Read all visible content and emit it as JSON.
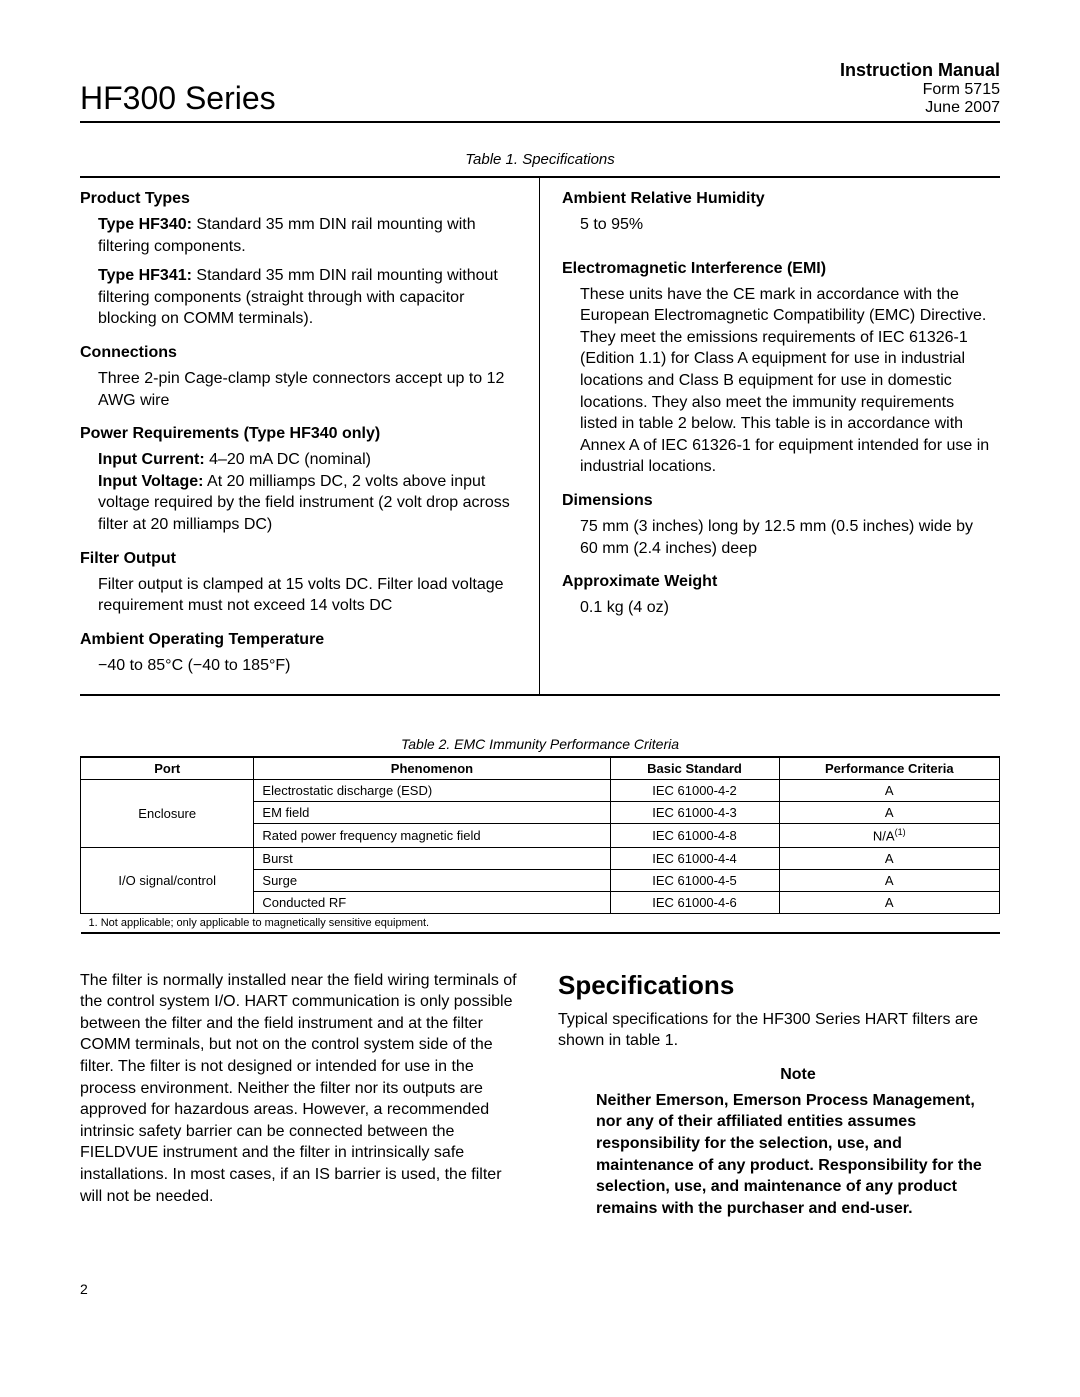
{
  "header": {
    "series": "HF300 Series",
    "manual_title": "Instruction Manual",
    "form_no": "Form 5715",
    "doc_date": "June 2007"
  },
  "table1": {
    "caption": "Table 1. Specifications",
    "left": {
      "product_types": {
        "heading": "Product Types",
        "hf340_label": "Type HF340:",
        "hf340_text": " Standard 35 mm DIN rail mounting with filtering components.",
        "hf341_label": "Type HF341:",
        "hf341_text": " Standard 35 mm DIN rail mounting without filtering components (straight through with capacitor blocking on COMM terminals)."
      },
      "connections": {
        "heading": "Connections",
        "text": "Three 2-pin Cage-clamp style connectors accept up to 12 AWG wire"
      },
      "power": {
        "heading": "Power Requirements (Type HF340 only)",
        "ic_label": "Input Current:",
        "ic_text": " 4–20 mA DC (nominal)",
        "iv_label": "Input Voltage:",
        "iv_text": " At 20 milliamps DC, 2 volts above input voltage required by the field instrument (2 volt drop across filter at 20 milliamps DC)"
      },
      "filter_output": {
        "heading": "Filter Output",
        "text": "Filter output is clamped at 15 volts DC. Filter load voltage requirement must not exceed 14 volts DC"
      },
      "ambient_temp": {
        "heading": "Ambient Operating Temperature",
        "text": "−40 to 85°C (−40 to 185°F)"
      }
    },
    "right": {
      "humidity": {
        "heading": "Ambient Relative Humidity",
        "text": "5 to 95%"
      },
      "emi": {
        "heading": "Electromagnetic Interference (EMI)",
        "text": "These units have the CE mark in accordance with the European Electromagnetic Compatibility (EMC) Directive. They meet the emissions requirements of IEC 61326-1 (Edition 1.1) for Class A equipment for use in industrial locations and Class B equipment for use in domestic locations. They also meet the immunity requirements listed in table 2 below. This table is in accordance with Annex A of IEC 61326-1 for equipment intended for use in industrial locations."
      },
      "dimensions": {
        "heading": "Dimensions",
        "text": "75 mm (3 inches) long by 12.5 mm (0.5 inches) wide by 60 mm (2.4 inches) deep"
      },
      "weight": {
        "heading": "Approximate Weight",
        "text": "0.1 kg (4 oz)"
      }
    }
  },
  "table2": {
    "caption": "Table 2. EMC Immunity Performance Criteria",
    "columns": [
      "Port",
      "Phenomenon",
      "Basic Standard",
      "Performance Criteria"
    ],
    "groups": [
      {
        "port": "Enclosure",
        "rows": [
          {
            "phenomenon": "Electrostatic discharge (ESD)",
            "standard": "IEC 61000-4-2",
            "criteria": "A"
          },
          {
            "phenomenon": "EM field",
            "standard": "IEC 61000-4-3",
            "criteria": "A"
          },
          {
            "phenomenon": "Rated power frequency magnetic field",
            "standard": "IEC 61000-4-8",
            "criteria": "N/A",
            "note": "(1)"
          }
        ]
      },
      {
        "port": "I/O signal/control",
        "rows": [
          {
            "phenomenon": "Burst",
            "standard": "IEC 61000-4-4",
            "criteria": "A"
          },
          {
            "phenomenon": "Surge",
            "standard": "IEC 61000-4-5",
            "criteria": "A"
          },
          {
            "phenomenon": "Conducted RF",
            "standard": "IEC 61000-4-6",
            "criteria": "A"
          }
        ]
      }
    ],
    "footnote": "1. Not applicable; only applicable to magnetically sensitive equipment."
  },
  "body": {
    "filter_para": "The filter is normally installed near the field wiring terminals of the control system I/O. HART communication is only possible between the filter and the field instrument and at the filter COMM terminals, but not on the control system side of the filter. The filter is not designed or intended for use in the process environment. Neither the filter nor its outputs are approved for hazardous areas. However, a recommended intrinsic safety barrier can be connected between the FIELDVUE instrument and the filter in intrinsically safe installations. In most cases, if an IS barrier is used, the filter will not be needed.",
    "specs_heading": "Specifications",
    "specs_text": "Typical specifications for the HF300 Series HART filters are shown in table 1.",
    "note_label": "Note",
    "note_text": "Neither Emerson, Emerson Process Management, nor any of their affiliated entities assumes responsibility for the selection, use, and maintenance of any product. Responsibility for the selection, use, and maintenance of any product remains with the purchaser and end-user."
  },
  "page_number": "2"
}
